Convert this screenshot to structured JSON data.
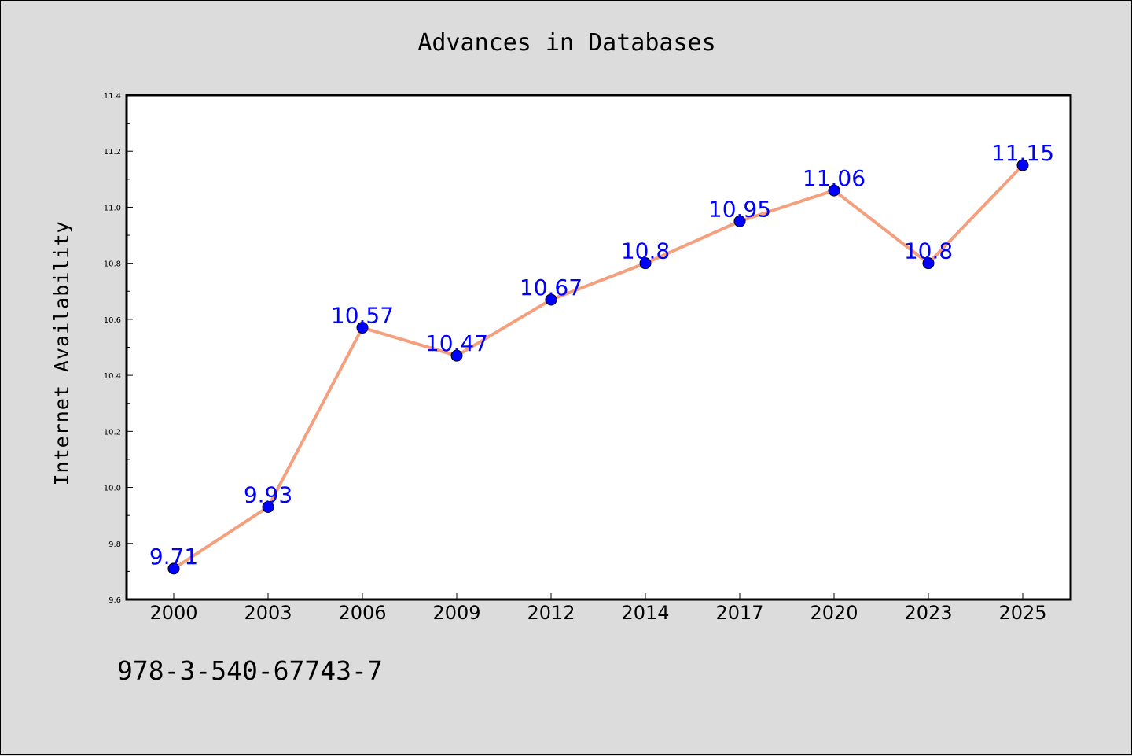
{
  "chart_data": {
    "type": "line",
    "title": "Advances in Databases",
    "xlabel": "",
    "ylabel": "Internet Availability",
    "categories": [
      "2000",
      "2003",
      "2006",
      "2009",
      "2012",
      "2014",
      "2017",
      "2020",
      "2023",
      "2025"
    ],
    "series": [
      {
        "values": [
          9.71,
          9.93,
          10.57,
          10.47,
          10.67,
          10.8,
          10.95,
          11.06,
          10.8,
          11.15
        ],
        "line_color": "#f4a07e",
        "marker_color": "#0000ff"
      }
    ],
    "data_labels": [
      "9.71",
      "9.93",
      "10.57",
      "10.47",
      "10.67",
      "10.8",
      "10.95",
      "11.06",
      "10.8",
      "11.15"
    ],
    "ylim": [
      9.6,
      11.4
    ],
    "yticks": [
      "9.6",
      "9.8",
      "10.0",
      "10.2",
      "10.4",
      "10.6",
      "10.8",
      "11.0",
      "11.2",
      "11.4"
    ],
    "grid": false,
    "legend": "none"
  },
  "annotation": "978-3-540-67743-7",
  "colors": {
    "background": "#dcdcdc",
    "plot_background": "#ffffff",
    "line": "#f4a07e",
    "marker": "#0000ff",
    "data_label": "#0000ff"
  }
}
